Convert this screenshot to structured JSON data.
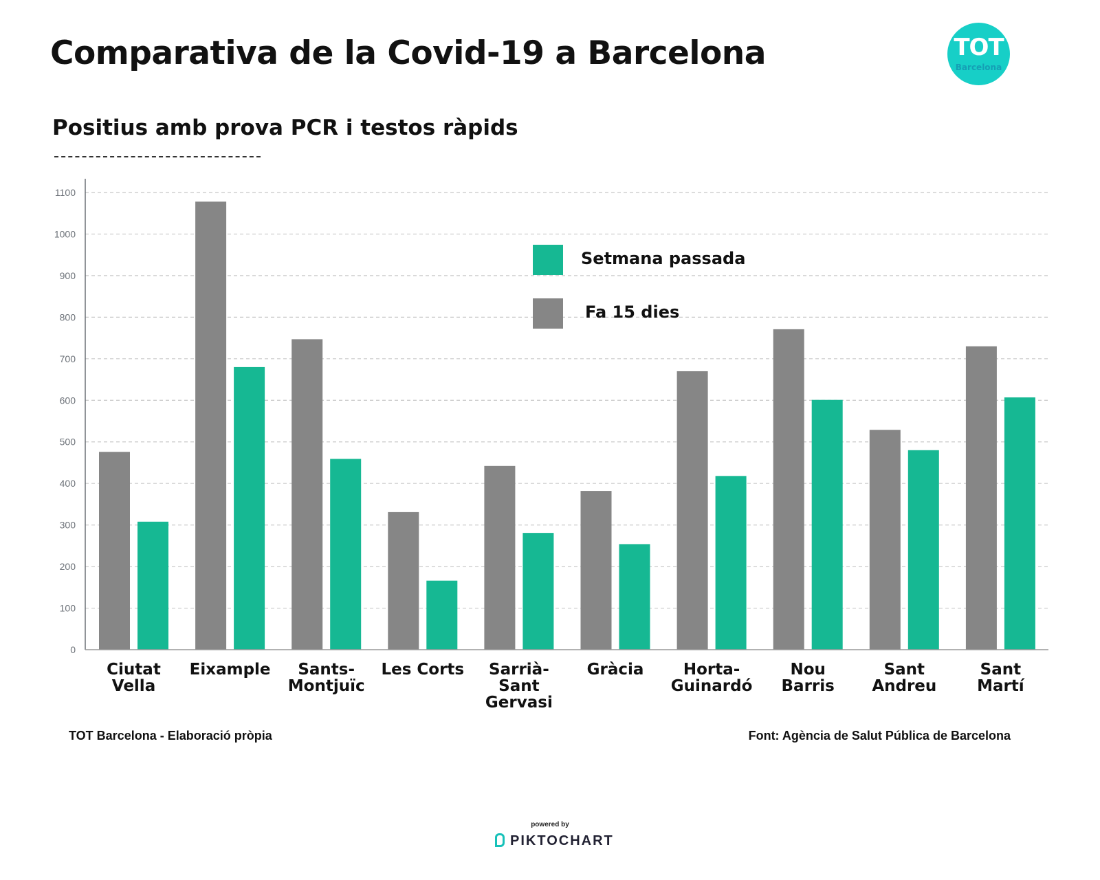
{
  "header": {
    "title": "Comparativa de la Covid-19 a Barcelona",
    "subtitle": "Positius amb prova PCR i testos ràpids",
    "logo_main": "TOT",
    "logo_sub": "Barcelona"
  },
  "colors": {
    "setmana_passada": "#16b893",
    "fa_15_dies": "#868686",
    "logo_bg": "#17cfc7"
  },
  "chart_data": {
    "type": "bar",
    "title": "Positius amb prova PCR i testos ràpids",
    "xlabel": "",
    "ylabel": "",
    "ylim": [
      0,
      1100
    ],
    "yticks": [
      0,
      100,
      200,
      300,
      400,
      500,
      600,
      700,
      800,
      900,
      1000,
      1100
    ],
    "grid": true,
    "legend_position": "top-center",
    "categories": [
      "Ciutat Vella",
      "Eixample",
      "Sants-Montjuïc",
      "Les Corts",
      "Sarrià-Sant Gervasi",
      "Gràcia",
      "Horta-Guinardó",
      "Nou Barris",
      "Sant Andreu",
      "Sant Martí"
    ],
    "category_labels": [
      "Ciutat\nVella",
      "Eixample",
      "Sants-\nMontjuïc",
      "Les Corts",
      "Sarrià-\nSant\nGervasi",
      "Gràcia",
      "Horta-\nGuinardó",
      "Nou\nBarris",
      "Sant\nAndreu",
      "Sant\nMartí"
    ],
    "series": [
      {
        "name": "Fa 15 dies",
        "color": "#868686",
        "values": [
          476,
          1078,
          747,
          331,
          442,
          382,
          670,
          771,
          529,
          730
        ]
      },
      {
        "name": "Setmana passada",
        "color": "#16b893",
        "values": [
          308,
          680,
          459,
          166,
          281,
          254,
          418,
          601,
          480,
          607
        ]
      }
    ],
    "legend": [
      {
        "label": "Setmana passada",
        "color": "#16b893"
      },
      {
        "label": "Fa 15 dies",
        "color": "#868686"
      }
    ]
  },
  "footer": {
    "left": "TOT Barcelona - Elaboració pròpia",
    "right": "Font: Agència de Salut Pública de Barcelona",
    "powered_by": "powered by",
    "brand": "PIKTOCHART"
  }
}
